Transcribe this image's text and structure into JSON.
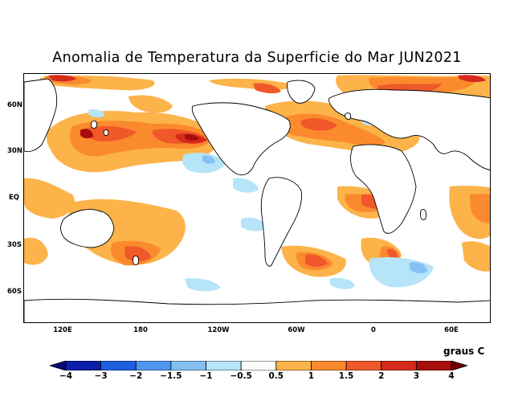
{
  "title": "Anomalia de Temperatura da Superficie do Mar JUN2021",
  "lat_labels": [
    "60N",
    "30N",
    "EQ",
    "30S",
    "60S"
  ],
  "lon_labels": [
    "120E",
    "180",
    "120W",
    "60W",
    "0",
    "60E"
  ],
  "units_label": "graus C",
  "colorbar": {
    "tick_labels": [
      "−4",
      "−3",
      "−2",
      "−1.5",
      "−1",
      "−0.5",
      "0.5",
      "1",
      "1.5",
      "2",
      "3",
      "4"
    ],
    "colors": [
      "#0a1fa8",
      "#1e5fe0",
      "#4f96ef",
      "#86c1f4",
      "#b6e4f8",
      "#ffffff",
      "#fcb34a",
      "#fb8a2e",
      "#f0582a",
      "#d62a1c",
      "#a80d0d"
    ],
    "end_low_color": "#0a0a70",
    "end_high_color": "#6e0000"
  },
  "colors": {
    "warm_light": "#fcb34a",
    "warm_mid": "#fb8a2e",
    "warm_strong": "#f0582a",
    "warm_vstrong": "#d62a1c",
    "warm_extreme": "#a80d0d",
    "cool_light": "#b6e4f8",
    "cool_mid": "#86c1f4"
  }
}
